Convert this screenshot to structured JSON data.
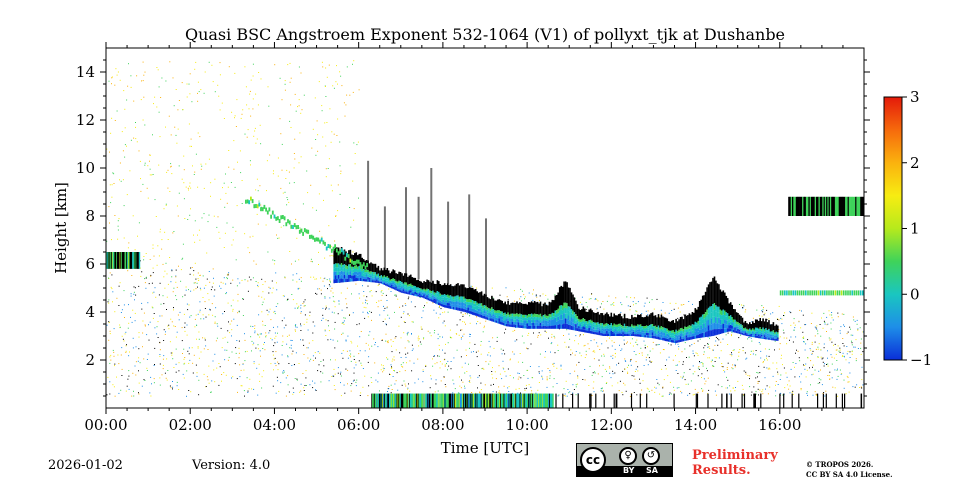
{
  "chart_data": {
    "type": "heatmap",
    "title": "Quasi BSC Angstroem Exponent 532-1064 (V1) of pollyxt_tjk at Dushanbe",
    "xlabel": "Time [UTC]",
    "ylabel": "Height [km]",
    "xlim_hours": [
      0,
      18
    ],
    "ylim_km": [
      0,
      15
    ],
    "x_ticks": [
      {
        "hour": 0,
        "label": "00:00"
      },
      {
        "hour": 2,
        "label": "02:00"
      },
      {
        "hour": 4,
        "label": "04:00"
      },
      {
        "hour": 6,
        "label": "06:00"
      },
      {
        "hour": 8,
        "label": "08:00"
      },
      {
        "hour": 10,
        "label": "10:00"
      },
      {
        "hour": 12,
        "label": "12:00"
      },
      {
        "hour": 14,
        "label": "14:00"
      },
      {
        "hour": 16,
        "label": "16:00"
      }
    ],
    "y_ticks": [
      {
        "km": 2,
        "label": "2"
      },
      {
        "km": 4,
        "label": "4"
      },
      {
        "km": 6,
        "label": "6"
      },
      {
        "km": 8,
        "label": "8"
      },
      {
        "km": 10,
        "label": "10"
      },
      {
        "km": 12,
        "label": "12"
      },
      {
        "km": 14,
        "label": "14"
      }
    ],
    "colorbar": {
      "min": -1,
      "max": 3,
      "ticks": [
        {
          "value": -1,
          "label": "−1"
        },
        {
          "value": 0,
          "label": "0"
        },
        {
          "value": 1,
          "label": "1"
        },
        {
          "value": 2,
          "label": "2"
        },
        {
          "value": 3,
          "label": "3"
        }
      ],
      "colors": [
        "#0a2ed8",
        "#1e8ee8",
        "#1ac6c0",
        "#3fd35a",
        "#b6ea1c",
        "#f7ec12",
        "#fbb20e",
        "#f66a0c",
        "#e41a0a"
      ]
    },
    "cloud_top_km": [
      {
        "hour": 5.4,
        "km": 6.7
      },
      {
        "hour": 6.0,
        "km": 6.4
      },
      {
        "hour": 6.5,
        "km": 5.8
      },
      {
        "hour": 7.0,
        "km": 5.6
      },
      {
        "hour": 7.5,
        "km": 5.3
      },
      {
        "hour": 8.0,
        "km": 5.2
      },
      {
        "hour": 8.5,
        "km": 5.1
      },
      {
        "hour": 9.0,
        "km": 4.7
      },
      {
        "hour": 9.5,
        "km": 4.4
      },
      {
        "hour": 10.0,
        "km": 4.4
      },
      {
        "hour": 10.5,
        "km": 4.3
      },
      {
        "hour": 10.9,
        "km": 5.3
      },
      {
        "hour": 11.2,
        "km": 4.2
      },
      {
        "hour": 11.8,
        "km": 3.9
      },
      {
        "hour": 12.5,
        "km": 3.8
      },
      {
        "hour": 13.0,
        "km": 3.9
      },
      {
        "hour": 13.5,
        "km": 3.6
      },
      {
        "hour": 14.0,
        "km": 4.1
      },
      {
        "hour": 14.4,
        "km": 5.5
      },
      {
        "hour": 14.8,
        "km": 4.4
      },
      {
        "hour": 15.2,
        "km": 3.5
      },
      {
        "hour": 15.5,
        "km": 3.7
      },
      {
        "hour": 15.9,
        "km": 3.5
      }
    ],
    "cloud_base_km": [
      {
        "hour": 5.4,
        "km": 5.2
      },
      {
        "hour": 6.0,
        "km": 5.3
      },
      {
        "hour": 6.5,
        "km": 5.2
      },
      {
        "hour": 7.0,
        "km": 4.8
      },
      {
        "hour": 7.5,
        "km": 4.6
      },
      {
        "hour": 8.0,
        "km": 4.2
      },
      {
        "hour": 8.5,
        "km": 4.0
      },
      {
        "hour": 9.0,
        "km": 3.7
      },
      {
        "hour": 9.5,
        "km": 3.4
      },
      {
        "hour": 10.0,
        "km": 3.3
      },
      {
        "hour": 10.5,
        "km": 3.3
      },
      {
        "hour": 10.9,
        "km": 3.3
      },
      {
        "hour": 11.2,
        "km": 3.2
      },
      {
        "hour": 11.8,
        "km": 3.0
      },
      {
        "hour": 12.5,
        "km": 3.0
      },
      {
        "hour": 13.0,
        "km": 2.9
      },
      {
        "hour": 13.5,
        "km": 2.7
      },
      {
        "hour": 14.0,
        "km": 2.9
      },
      {
        "hour": 14.4,
        "km": 3.0
      },
      {
        "hour": 14.8,
        "km": 3.2
      },
      {
        "hour": 15.2,
        "km": 3.0
      },
      {
        "hour": 15.5,
        "km": 2.9
      },
      {
        "hour": 15.9,
        "km": 2.8
      }
    ],
    "upper_layer": {
      "hour_start": 16.2,
      "hour_end": 18,
      "km_bottom": 8.0,
      "km_top": 8.8
    },
    "early_layer": {
      "hour_start": 0,
      "hour_end": 0.8,
      "km_bottom": 5.8,
      "km_top": 6.5
    },
    "rain_band": {
      "hour_start": 6.3,
      "hour_end": 10.6,
      "km_bottom": 0,
      "km_top": 0.6
    }
  },
  "footer": {
    "date": "2026-01-02",
    "version": "Version: 4.0",
    "cc_labels": [
      "cc",
      "BY",
      "SA"
    ],
    "preliminary": [
      "Preliminary",
      "Results."
    ],
    "copyright": [
      "© TROPOS 2026.",
      "CC BY SA 4.0 License."
    ]
  }
}
